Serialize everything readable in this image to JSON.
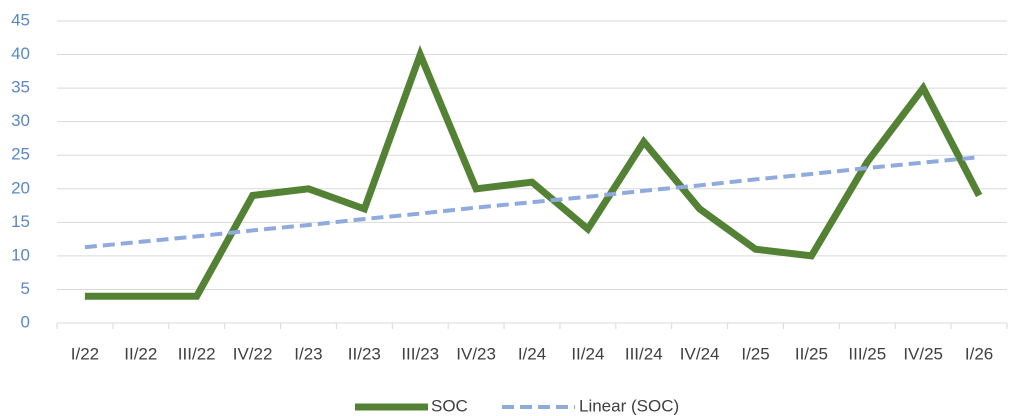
{
  "chart_data": {
    "type": "line",
    "categories": [
      "I/22",
      "II/22",
      "III/22",
      "IV/22",
      "I/23",
      "II/23",
      "III/23",
      "IV/23",
      "I/24",
      "II/24",
      "III/24",
      "IV/24",
      "I/25",
      "II/25",
      "III/25",
      "IV/25",
      "I/26"
    ],
    "series": [
      {
        "name": "SOC",
        "color": "#548235",
        "dash": false,
        "values": [
          4,
          4,
          4,
          19,
          20,
          17,
          40,
          20,
          21,
          14,
          27,
          17,
          11,
          10,
          24,
          35,
          19
        ]
      },
      {
        "name": "Linear (SOC)",
        "color": "#8faadc",
        "dash": true,
        "values": [
          11.3,
          12.1,
          12.9,
          13.8,
          14.6,
          15.5,
          16.3,
          17.2,
          18.0,
          18.8,
          19.7,
          20.5,
          21.4,
          22.2,
          23.1,
          23.9,
          24.7
        ]
      }
    ],
    "ylim": [
      0,
      45
    ],
    "yticks": [
      0,
      5,
      10,
      15,
      20,
      25,
      30,
      35,
      40,
      45
    ],
    "grid": true,
    "legend": "bottom"
  }
}
